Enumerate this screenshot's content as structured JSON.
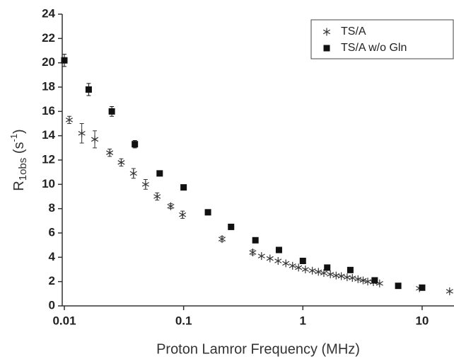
{
  "chart_data": {
    "type": "scatter",
    "xlabel": "Proton Lamror Frequency (MHz)",
    "ylabel": {
      "main": "R",
      "sub": "1obs",
      "rest": " (s",
      "sup": "-1",
      "end": ")"
    },
    "xscale": "log",
    "xlim": [
      0.0096,
      18.5
    ],
    "ylim": [
      0,
      24
    ],
    "xticks": [
      0.01,
      0.1,
      1,
      10
    ],
    "yticks": [
      0,
      2,
      4,
      6,
      8,
      10,
      12,
      14,
      16,
      18,
      20,
      22,
      24
    ],
    "legend": "upper right",
    "series": [
      {
        "name": "TS/A",
        "marker": "star",
        "color": "#333333",
        "x": [
          0.011,
          0.014,
          0.018,
          0.024,
          0.03,
          0.038,
          0.048,
          0.06,
          0.078,
          0.098,
          0.21,
          0.38,
          0.45,
          0.53,
          0.62,
          0.72,
          0.82,
          0.92,
          1.05,
          1.2,
          1.35,
          1.5,
          1.7,
          1.9,
          2.1,
          2.35,
          2.6,
          2.9,
          3.2,
          3.5,
          3.9,
          4.4,
          9.5,
          17
        ],
        "values": [
          15.3,
          14.2,
          13.7,
          12.6,
          11.8,
          10.9,
          10.0,
          9.0,
          8.2,
          7.5,
          5.5,
          4.4,
          4.1,
          3.9,
          3.7,
          3.5,
          3.3,
          3.15,
          3.0,
          2.9,
          2.8,
          2.7,
          2.6,
          2.5,
          2.45,
          2.35,
          2.3,
          2.2,
          2.1,
          2.0,
          1.95,
          1.85,
          1.45,
          1.2
        ],
        "errors": [
          0.3,
          0.8,
          0.7,
          0.3,
          0.3,
          0.4,
          0.4,
          0.3,
          0.2,
          0.3,
          0.2,
          0.2,
          null,
          null,
          null,
          null,
          null,
          null,
          null,
          null,
          null,
          null,
          null,
          null,
          null,
          null,
          null,
          null,
          null,
          null,
          null,
          null,
          null,
          null
        ]
      },
      {
        "name": "TS/A w/o Gln",
        "marker": "square",
        "color": "#111111",
        "x": [
          0.01,
          0.016,
          0.025,
          0.039,
          0.063,
          0.1,
          0.16,
          0.25,
          0.4,
          0.63,
          1.0,
          1.6,
          2.5,
          4.0,
          6.3,
          10
        ],
        "values": [
          20.2,
          17.8,
          16.0,
          13.3,
          10.9,
          9.75,
          7.7,
          6.5,
          5.4,
          4.6,
          3.7,
          3.15,
          2.95,
          2.1,
          1.65,
          1.5
        ],
        "errors": [
          0.5,
          0.5,
          0.4,
          0.3,
          0.2,
          null,
          null,
          null,
          null,
          null,
          null,
          null,
          null,
          null,
          null,
          null
        ]
      }
    ]
  }
}
